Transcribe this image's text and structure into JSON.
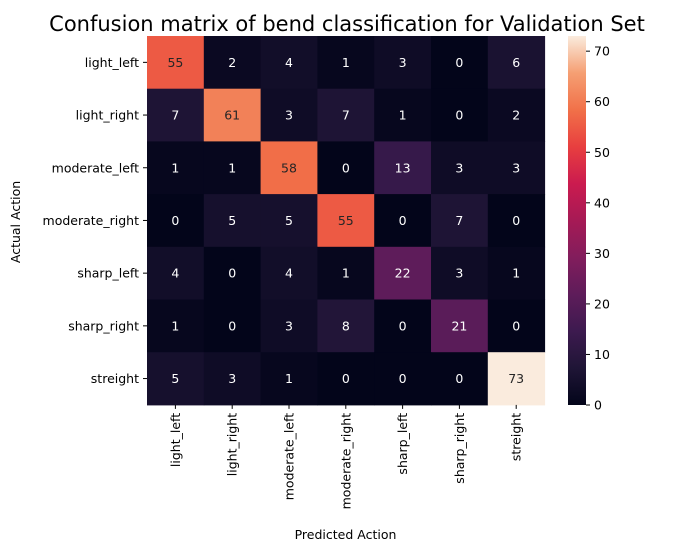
{
  "chart_data": {
    "type": "heatmap",
    "title": "Confusion matrix of bend classification for Validation Set",
    "xlabel": "Predicted Action",
    "ylabel": "Actual Action",
    "x_categories": [
      "light_left",
      "light_right",
      "moderate_left",
      "moderate_right",
      "sharp_left",
      "sharp_right",
      "streight"
    ],
    "y_categories": [
      "light_left",
      "light_right",
      "moderate_left",
      "moderate_right",
      "sharp_left",
      "sharp_right",
      "streight"
    ],
    "values": [
      [
        55,
        2,
        4,
        1,
        3,
        0,
        6
      ],
      [
        7,
        61,
        3,
        7,
        1,
        0,
        2
      ],
      [
        1,
        1,
        58,
        0,
        13,
        3,
        3
      ],
      [
        0,
        5,
        5,
        55,
        0,
        7,
        0
      ],
      [
        4,
        0,
        4,
        1,
        22,
        3,
        1
      ],
      [
        1,
        0,
        3,
        8,
        0,
        21,
        0
      ],
      [
        5,
        3,
        1,
        0,
        0,
        0,
        73
      ]
    ],
    "colormap": "rocket",
    "vmin": 0,
    "vmax": 73,
    "colorbar_ticks": [
      0,
      10,
      20,
      30,
      40,
      50,
      60,
      70
    ],
    "annotations": true
  }
}
